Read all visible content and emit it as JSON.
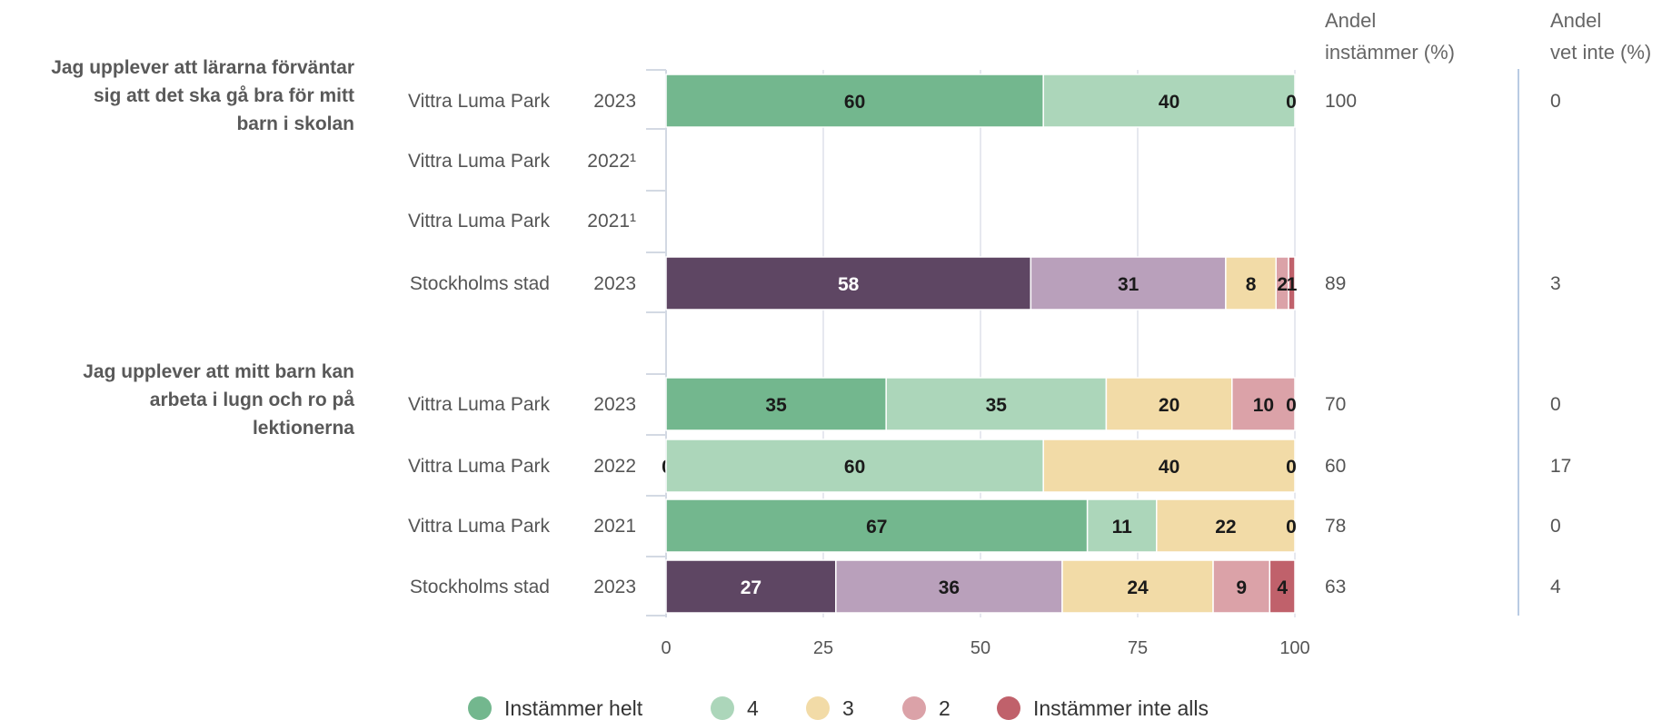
{
  "chart_data": {
    "type": "bar",
    "stacked": true,
    "orientation": "horizontal",
    "xlim": [
      0,
      100
    ],
    "x_ticks": [
      "0",
      "25",
      "50",
      "75",
      "100"
    ],
    "grid": true,
    "legend_position": "bottom",
    "extra_column_headers": [
      [
        "Andel",
        "instämmer (%)"
      ],
      [
        "Andel",
        "vet inte (%)"
      ]
    ],
    "legend": [
      {
        "name": "Instämmer helt",
        "color": "#73b78e"
      },
      {
        "name": "4",
        "color": "#acd6ba"
      },
      {
        "name": "3",
        "color": "#f2dba7"
      },
      {
        "name": "2",
        "color": "#dba2a8"
      },
      {
        "name": "Instämmer inte alls",
        "color": "#c0616b"
      }
    ],
    "groups": [
      {
        "question": [
          "Jag upplever att lärarna förväntar",
          "sig att det ska gå bra för mitt",
          "barn i skolan"
        ],
        "rows": [
          {
            "unit": "Vittra Luma Park",
            "year": "2023",
            "theme": "school",
            "values": [
              60,
              40,
              0,
              null,
              null
            ],
            "andel_instammer": "100",
            "andel_vet_inte": "0"
          },
          {
            "unit": "Vittra Luma Park",
            "year": "2022¹",
            "theme": "school",
            "values": null,
            "andel_instammer": "",
            "andel_vet_inte": ""
          },
          {
            "unit": "Vittra Luma Park",
            "year": "2021¹",
            "theme": "school",
            "values": null,
            "andel_instammer": "",
            "andel_vet_inte": ""
          },
          {
            "unit": "Stockholms stad",
            "year": "2023",
            "theme": "city",
            "values": [
              58,
              31,
              8,
              2,
              1
            ],
            "andel_instammer": "89",
            "andel_vet_inte": "3"
          }
        ]
      },
      {
        "question": [
          "Jag upplever att mitt barn kan",
          "arbeta i lugn och ro på",
          "lektionerna"
        ],
        "rows": [
          {
            "unit": "Vittra Luma Park",
            "year": "2023",
            "theme": "school",
            "values": [
              35,
              35,
              20,
              10,
              0
            ],
            "andel_instammer": "70",
            "andel_vet_inte": "0"
          },
          {
            "unit": "Vittra Luma Park",
            "year": "2022",
            "theme": "school",
            "values": [
              0,
              60,
              40,
              0,
              null
            ],
            "andel_instammer": "60",
            "andel_vet_inte": "17"
          },
          {
            "unit": "Vittra Luma Park",
            "year": "2021",
            "theme": "school",
            "values": [
              67,
              11,
              22,
              0,
              null
            ],
            "andel_instammer": "78",
            "andel_vet_inte": "0"
          },
          {
            "unit": "Stockholms stad",
            "year": "2023",
            "theme": "city",
            "values": [
              27,
              36,
              24,
              9,
              4
            ],
            "andel_instammer": "63",
            "andel_vet_inte": "4"
          }
        ]
      }
    ],
    "palettes": {
      "school": [
        "#73b78e",
        "#acd6ba",
        "#f2dba7",
        "#dba2a8",
        "#c0616b"
      ],
      "city": [
        "#5e4663",
        "#b9a0bb",
        "#f2dba7",
        "#dba2a8",
        "#c0616b"
      ]
    }
  }
}
